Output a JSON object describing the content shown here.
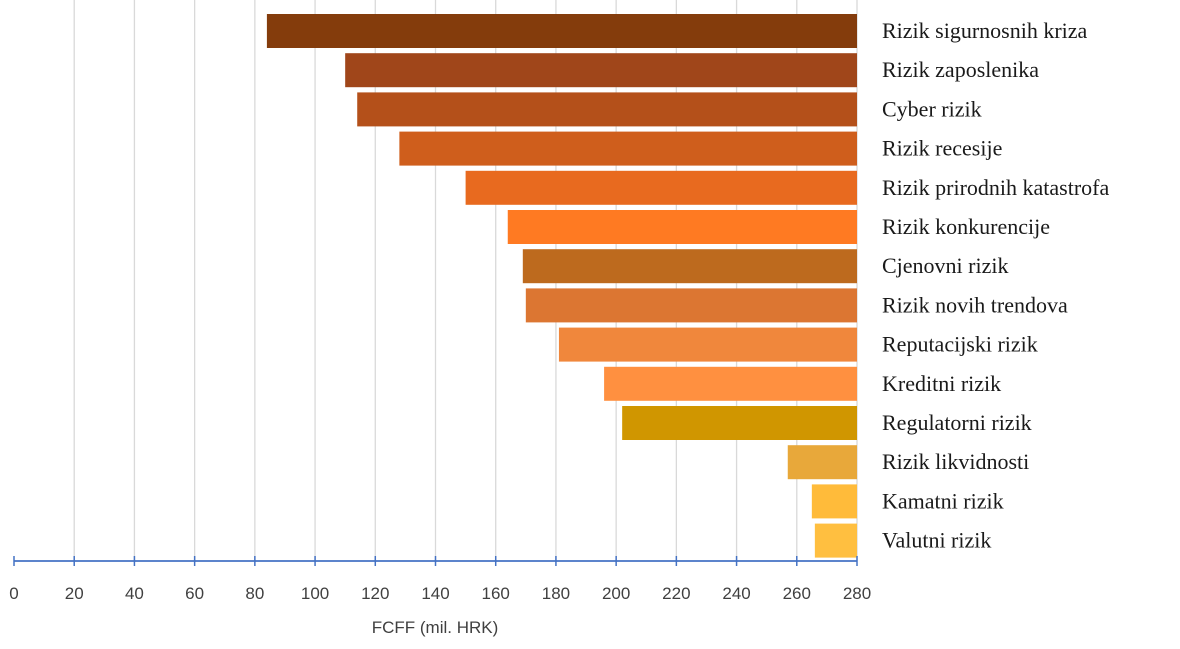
{
  "chart_data": {
    "type": "bar",
    "orientation": "horizontal",
    "base_value": 280,
    "categories": [
      "Rizik sigurnosnih kriza",
      "Rizik zaposlenika",
      "Cyber rizik",
      "Rizik recesije",
      "Rizik prirodnih katastrofa",
      "Rizik konkurencije",
      "Cjenovni rizik",
      "Rizik novih trendova",
      "Reputacijski rizik",
      "Kreditni rizik",
      "Regulatorni rizik",
      "Rizik likvidnosti",
      "Kamatni rizik",
      "Valutni rizik"
    ],
    "values": [
      84,
      110,
      114,
      128,
      150,
      164,
      169,
      170,
      181,
      196,
      202,
      257,
      265,
      266
    ],
    "colors": [
      "#843C0C",
      "#A0461A",
      "#B4501A",
      "#CF5E1C",
      "#E86A1F",
      "#FF7A22",
      "#BD6A1E",
      "#DC7632",
      "#F0873C",
      "#FF9040",
      "#D09600",
      "#E8A83A",
      "#FFBB3A",
      "#FFBF40"
    ],
    "xlabel": "FCFF (mil. HRK)",
    "xlim": [
      0,
      280
    ],
    "xticks": [
      0,
      20,
      40,
      60,
      80,
      100,
      120,
      140,
      160,
      180,
      200,
      220,
      240,
      260,
      280
    ],
    "grid": "vertical",
    "axis_color": "#4472C4",
    "grid_color": "#D9D9D9"
  }
}
